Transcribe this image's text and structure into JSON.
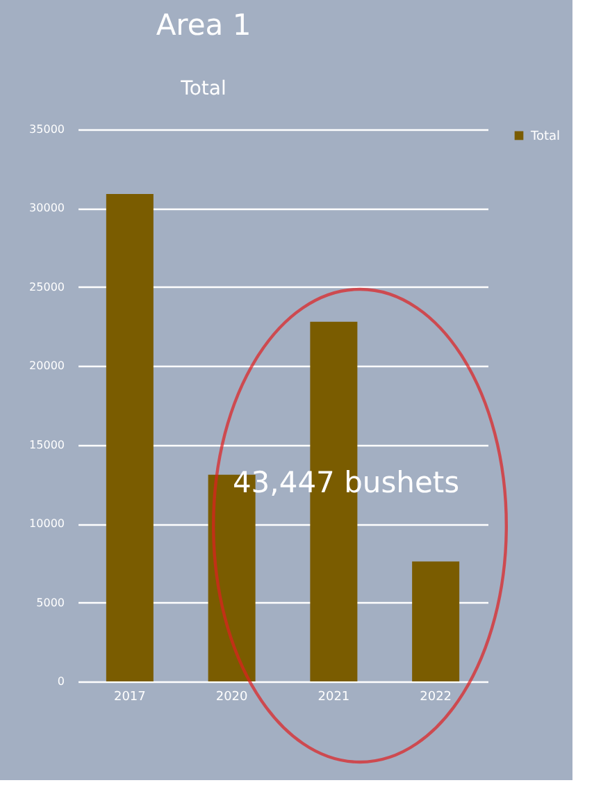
{
  "chart_data": {
    "type": "bar",
    "title": "Area 1",
    "subtitle": "Total",
    "categories": [
      "2017",
      "2020",
      "2021",
      "2022"
    ],
    "series": [
      {
        "name": "Total",
        "color": "#7a5c00",
        "values": [
          30900,
          13100,
          22800,
          7600
        ]
      }
    ],
    "ylim": [
      0,
      35000
    ],
    "yticks": [
      0,
      5000,
      10000,
      15000,
      20000,
      25000,
      30000,
      35000
    ],
    "grid": "y",
    "legend": "right",
    "annotations": [
      "43,447 bushets"
    ]
  }
}
